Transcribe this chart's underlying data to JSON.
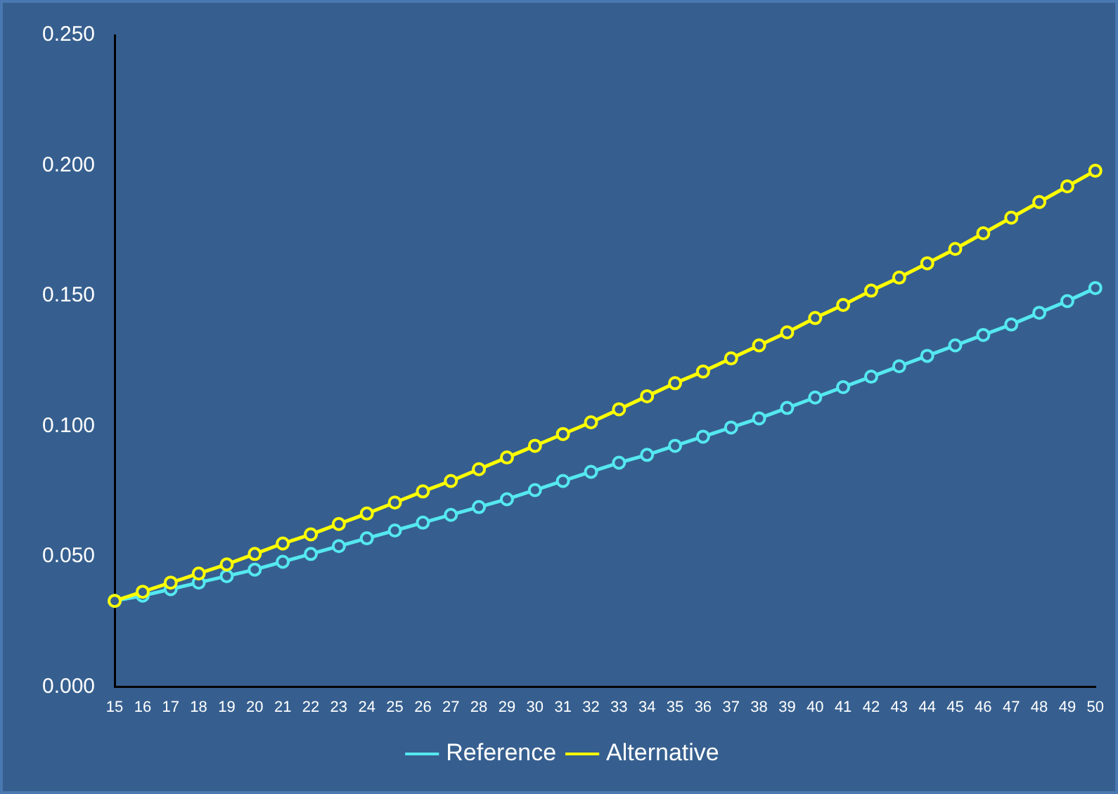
{
  "chart_data": {
    "type": "line",
    "categories": [
      "15",
      "16",
      "17",
      "18",
      "19",
      "20",
      "21",
      "22",
      "23",
      "24",
      "25",
      "26",
      "27",
      "28",
      "29",
      "30",
      "31",
      "32",
      "33",
      "34",
      "35",
      "36",
      "37",
      "38",
      "39",
      "40",
      "41",
      "42",
      "43",
      "44",
      "45",
      "46",
      "47",
      "48",
      "49",
      "50"
    ],
    "series": [
      {
        "name": "Reference",
        "color": "#55e8f0",
        "values": [
          0.033,
          0.035,
          0.0375,
          0.04,
          0.0425,
          0.045,
          0.048,
          0.051,
          0.054,
          0.057,
          0.06,
          0.063,
          0.066,
          0.069,
          0.072,
          0.0755,
          0.079,
          0.0825,
          0.086,
          0.089,
          0.0925,
          0.096,
          0.0995,
          0.103,
          0.107,
          0.111,
          0.115,
          0.119,
          0.123,
          0.127,
          0.131,
          0.135,
          0.139,
          0.1435,
          0.148,
          0.153
        ]
      },
      {
        "name": "Alternative",
        "color": "#ffff00",
        "values": [
          0.033,
          0.0365,
          0.04,
          0.0435,
          0.047,
          0.051,
          0.055,
          0.0585,
          0.0625,
          0.0665,
          0.0707,
          0.075,
          0.079,
          0.0835,
          0.088,
          0.0925,
          0.097,
          0.1015,
          0.1065,
          0.1115,
          0.1165,
          0.121,
          0.126,
          0.131,
          0.136,
          0.1415,
          0.1465,
          0.152,
          0.157,
          0.1625,
          0.168,
          0.174,
          0.18,
          0.186,
          0.192,
          0.198
        ]
      }
    ],
    "ylim": [
      0,
      0.25
    ],
    "yticks": [
      {
        "value": 0,
        "label": "0.000"
      },
      {
        "value": 0.05,
        "label": "0.050"
      },
      {
        "value": 0.1,
        "label": "0.100"
      },
      {
        "value": 0.15,
        "label": "0.150"
      },
      {
        "value": 0.2,
        "label": "0.200"
      },
      {
        "value": 0.25,
        "label": "0.250"
      }
    ],
    "grid": false,
    "legend": "bottom",
    "marker": "circle",
    "line_style": "solid"
  }
}
